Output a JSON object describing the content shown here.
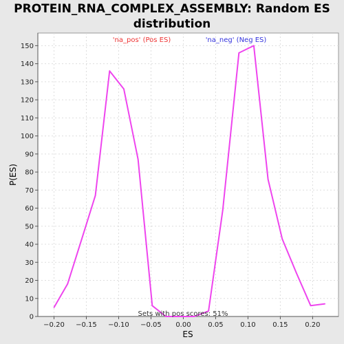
{
  "chart_data": {
    "type": "line",
    "title_line1": "PROTEIN_RNA_COMPLEX_ASSEMBLY: Random ES",
    "title_line2": "distribution",
    "xlabel": "ES",
    "ylabel": "P(ES)",
    "xlim": [
      -0.225,
      0.24
    ],
    "ylim": [
      0,
      157
    ],
    "x_ticks": [
      -0.2,
      -0.15,
      -0.1,
      -0.05,
      0.0,
      0.05,
      0.1,
      0.15,
      0.2
    ],
    "x_tick_labels": [
      "−0.20",
      "−0.15",
      "−0.10",
      "−0.05",
      "0.00",
      "0.05",
      "0.10",
      "0.15",
      "0.20"
    ],
    "y_ticks": [
      0,
      10,
      20,
      30,
      40,
      50,
      60,
      70,
      80,
      90,
      100,
      110,
      120,
      130,
      140,
      150
    ],
    "grid": true,
    "series": [
      {
        "color": "#ee44ee",
        "x": [
          -0.2,
          -0.179,
          -0.157,
          -0.136,
          -0.114,
          -0.092,
          -0.07,
          -0.048,
          -0.027,
          -0.005,
          0.017,
          0.039,
          0.061,
          0.086,
          0.109,
          0.131,
          0.153,
          0.175,
          0.197,
          0.219
        ],
        "y": [
          5,
          18,
          43,
          67,
          136,
          126,
          87,
          6,
          0,
          0,
          0,
          3,
          59,
          146,
          150,
          76,
          43,
          24,
          6,
          7
        ]
      }
    ],
    "annotations": {
      "pos_label": "'na_pos' (Pos ES)",
      "pos_color": "#ee3333",
      "neg_label": "'na_neg' (Neg ES)",
      "neg_color": "#3333dd",
      "footer": "Sets with pos scores: 51%"
    }
  }
}
